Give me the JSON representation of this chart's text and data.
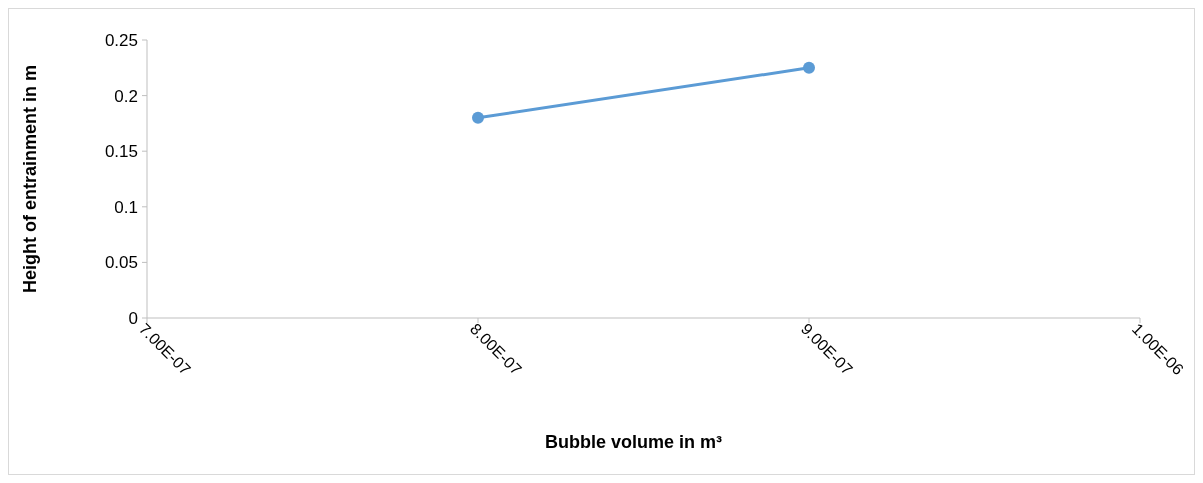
{
  "chart_data": {
    "type": "line",
    "xlabel": "Bubble volume in m³",
    "ylabel": "Height of entrainment in m",
    "x": [
      8e-07,
      9e-07
    ],
    "series": [
      {
        "color": "#5b9bd5",
        "values": [
          0.18,
          0.225
        ]
      }
    ],
    "xlim": [
      7e-07,
      1e-06
    ],
    "xticks": [
      {
        "value": 7e-07,
        "label": "7.00E-07"
      },
      {
        "value": 8e-07,
        "label": "8.00E-07"
      },
      {
        "value": 9e-07,
        "label": "9.00E-07"
      },
      {
        "value": 1e-06,
        "label": "1.00E-06"
      }
    ],
    "ylim": [
      0,
      0.25
    ],
    "yticks": [
      0,
      0.05,
      0.1,
      0.15,
      0.2,
      0.25
    ],
    "marker": "circle",
    "line_style": "solid",
    "grid": false
  }
}
